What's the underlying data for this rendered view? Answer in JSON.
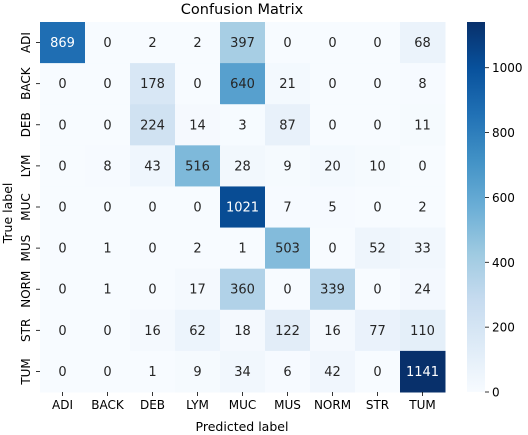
{
  "chart_data": {
    "type": "heatmap",
    "title": "Confusion Matrix",
    "xlabel": "Predicted label",
    "ylabel": "True label",
    "x_categories": [
      "ADI",
      "BACK",
      "DEB",
      "LYM",
      "MUC",
      "MUS",
      "NORM",
      "STR",
      "TUM"
    ],
    "y_categories": [
      "ADI",
      "BACK",
      "DEB",
      "LYM",
      "MUC",
      "MUS",
      "NORM",
      "STR",
      "TUM"
    ],
    "values": [
      [
        869,
        0,
        2,
        2,
        397,
        0,
        0,
        0,
        68
      ],
      [
        0,
        0,
        178,
        0,
        640,
        21,
        0,
        0,
        8
      ],
      [
        0,
        0,
        224,
        14,
        3,
        87,
        0,
        0,
        11
      ],
      [
        0,
        8,
        43,
        516,
        28,
        9,
        20,
        10,
        0
      ],
      [
        0,
        0,
        0,
        0,
        1021,
        7,
        5,
        0,
        2
      ],
      [
        0,
        1,
        0,
        2,
        1,
        503,
        0,
        52,
        33
      ],
      [
        0,
        1,
        0,
        17,
        360,
        0,
        339,
        0,
        24
      ],
      [
        0,
        0,
        16,
        62,
        18,
        122,
        16,
        77,
        110
      ],
      [
        0,
        0,
        1,
        9,
        34,
        6,
        42,
        0,
        1141
      ]
    ],
    "colormap": "Blues",
    "colorbar": {
      "min": 0,
      "max": 1141,
      "ticks": [
        0,
        200,
        400,
        600,
        800,
        1000
      ]
    }
  }
}
